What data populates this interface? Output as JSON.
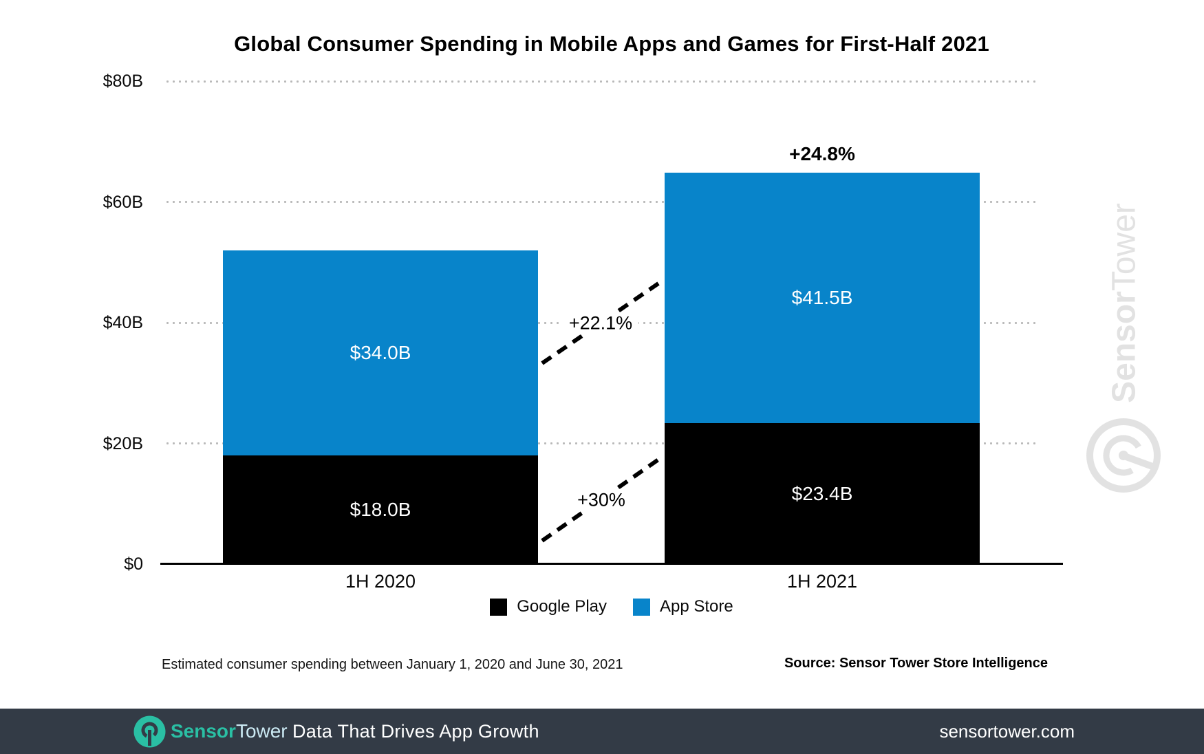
{
  "title": "Global Consumer Spending in Mobile Apps and Games for First-Half 2021",
  "y_axis": {
    "labels": [
      "$80B",
      "$60B",
      "$40B",
      "$20B",
      "$0"
    ]
  },
  "chart_data": {
    "type": "bar",
    "stacked": true,
    "title": "Global Consumer Spending in Mobile Apps and Games for First-Half 2021",
    "categories": [
      "1H 2020",
      "1H 2021"
    ],
    "series": [
      {
        "name": "Google Play",
        "color": "#000000",
        "values": [
          18.0,
          23.4
        ],
        "labels": [
          "$18.0B",
          "$23.4B"
        ]
      },
      {
        "name": "App Store",
        "color": "#0884ca",
        "values": [
          34.0,
          41.5
        ],
        "labels": [
          "$34.0B",
          "$41.5B"
        ]
      }
    ],
    "totals": [
      52.0,
      64.9
    ],
    "growth": {
      "total": "+24.8%",
      "app_store": "+22.1%",
      "google_play": "+30%"
    },
    "ylabel": "",
    "xlabel": "",
    "ylim": [
      0,
      80
    ],
    "yticks": [
      "$0",
      "$20B",
      "$40B",
      "$60B",
      "$80B"
    ],
    "grid": "dotted-horizontal",
    "legend_position": "bottom"
  },
  "legend": [
    {
      "label": "Google Play",
      "color": "#000000"
    },
    {
      "label": "App Store",
      "color": "#0884ca"
    }
  ],
  "footnote": {
    "left": "Estimated consumer spending between January 1, 2020 and June 30, 2021",
    "right": "Source: Sensor Tower Store Intelligence"
  },
  "watermark": {
    "brand_first": "Sensor",
    "brand_second": "Tower"
  },
  "footer": {
    "brand_first": "Sensor",
    "brand_second": "Tower",
    "tagline": "Data That Drives App Growth",
    "website": "sensortower.com"
  },
  "colors": {
    "app_store_blue": "#0884ca",
    "google_play_black": "#000000",
    "footer_background": "#333b46",
    "footer_teal": "#2abfa4",
    "gridline_gray": "#b9b9b9",
    "watermark_gray": "#e2e2e2"
  }
}
